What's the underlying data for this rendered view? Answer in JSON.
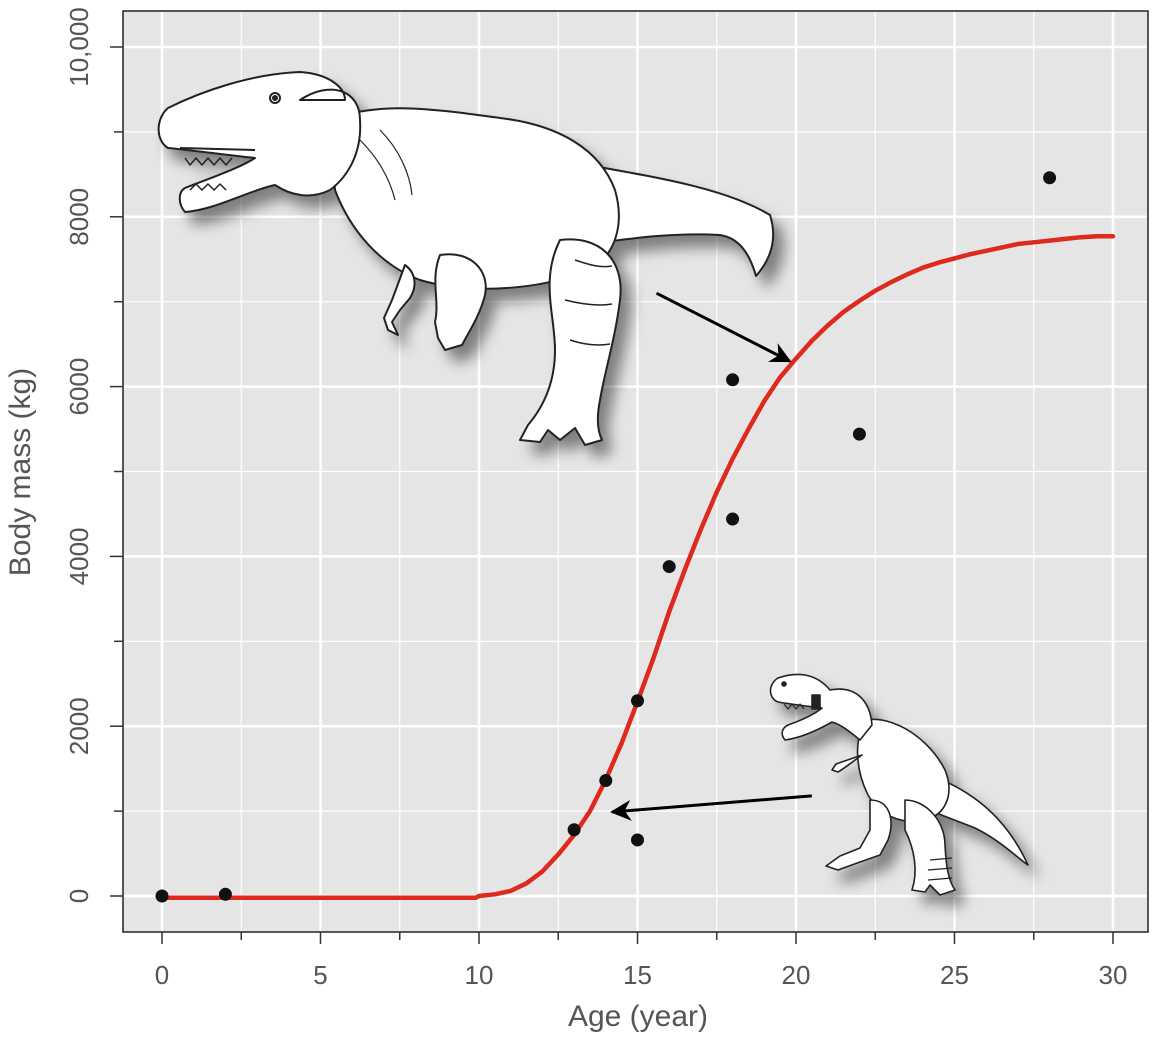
{
  "chart_data": {
    "type": "scatter",
    "title": "",
    "xlabel": "Age (year)",
    "ylabel": "Body mass (kg)",
    "xlim": [
      0,
      30
    ],
    "ylim": [
      0,
      10000
    ],
    "x_ticks": [
      {
        "value": 0,
        "label": "0"
      },
      {
        "value": 5,
        "label": "5"
      },
      {
        "value": 10,
        "label": "10"
      },
      {
        "value": 15,
        "label": "15"
      },
      {
        "value": 20,
        "label": "20"
      },
      {
        "value": 25,
        "label": "25"
      },
      {
        "value": 30,
        "label": "30"
      }
    ],
    "y_ticks": [
      {
        "value": 0,
        "label": "0"
      },
      {
        "value": 2000,
        "label": "2000"
      },
      {
        "value": 4000,
        "label": "4000"
      },
      {
        "value": 6000,
        "label": "6000"
      },
      {
        "value": 8000,
        "label": "8000"
      },
      {
        "value": 10000,
        "label": "10,000"
      }
    ],
    "grid": true,
    "background": "#e5e5e5",
    "series": [
      {
        "type": "scatter",
        "color": "#111111",
        "points": [
          {
            "x": 0,
            "y": 0
          },
          {
            "x": 2,
            "y": 20
          },
          {
            "x": 13,
            "y": 780
          },
          {
            "x": 14,
            "y": 1360
          },
          {
            "x": 15,
            "y": 2300
          },
          {
            "x": 15,
            "y": 660
          },
          {
            "x": 16,
            "y": 3880
          },
          {
            "x": 18,
            "y": 6080
          },
          {
            "x": 18,
            "y": 4440
          },
          {
            "x": 22,
            "y": 5440
          },
          {
            "x": 28,
            "y": 8460
          }
        ]
      },
      {
        "type": "line",
        "color": "#dd2a1d",
        "points": [
          {
            "x": 0,
            "y": -20
          },
          {
            "x": 5,
            "y": -20
          },
          {
            "x": 9.9,
            "y": -20
          },
          {
            "x": 10,
            "y": 0
          },
          {
            "x": 10.5,
            "y": 20
          },
          {
            "x": 11,
            "y": 60
          },
          {
            "x": 11.5,
            "y": 150
          },
          {
            "x": 12,
            "y": 290
          },
          {
            "x": 12.5,
            "y": 490
          },
          {
            "x": 13,
            "y": 720
          },
          {
            "x": 13.5,
            "y": 1000
          },
          {
            "x": 14,
            "y": 1370
          },
          {
            "x": 14.5,
            "y": 1800
          },
          {
            "x": 15,
            "y": 2290
          },
          {
            "x": 15.5,
            "y": 2800
          },
          {
            "x": 16,
            "y": 3350
          },
          {
            "x": 16.5,
            "y": 3850
          },
          {
            "x": 17,
            "y": 4320
          },
          {
            "x": 17.5,
            "y": 4760
          },
          {
            "x": 18,
            "y": 5150
          },
          {
            "x": 18.5,
            "y": 5500
          },
          {
            "x": 19,
            "y": 5830
          },
          {
            "x": 19.5,
            "y": 6110
          },
          {
            "x": 20,
            "y": 6330
          },
          {
            "x": 20.5,
            "y": 6540
          },
          {
            "x": 21,
            "y": 6720
          },
          {
            "x": 21.5,
            "y": 6880
          },
          {
            "x": 22,
            "y": 7010
          },
          {
            "x": 22.5,
            "y": 7130
          },
          {
            "x": 23,
            "y": 7230
          },
          {
            "x": 23.5,
            "y": 7320
          },
          {
            "x": 24,
            "y": 7400
          },
          {
            "x": 24.5,
            "y": 7460
          },
          {
            "x": 25,
            "y": 7510
          },
          {
            "x": 25.5,
            "y": 7560
          },
          {
            "x": 26,
            "y": 7600
          },
          {
            "x": 26.5,
            "y": 7640
          },
          {
            "x": 27,
            "y": 7680
          },
          {
            "x": 27.5,
            "y": 7700
          },
          {
            "x": 28,
            "y": 7720
          },
          {
            "x": 28.5,
            "y": 7740
          },
          {
            "x": 29,
            "y": 7760
          },
          {
            "x": 29.5,
            "y": 7770
          },
          {
            "x": 30,
            "y": 7770
          }
        ]
      }
    ],
    "annotations": [
      {
        "type": "arrow",
        "from": {
          "x": 15.6,
          "y": 7100
        },
        "to": {
          "x": 19.8,
          "y": 6300
        },
        "meaning": "adult dinosaur illustration to curve"
      },
      {
        "type": "arrow",
        "from": {
          "x": 20.5,
          "y": 1180
        },
        "to": {
          "x": 14.2,
          "y": 990
        },
        "meaning": "juvenile dinosaur illustration to curve"
      }
    ],
    "illustrations": [
      "adult-tyrannosaur-icon",
      "juvenile-tyrannosaur-icon"
    ]
  }
}
